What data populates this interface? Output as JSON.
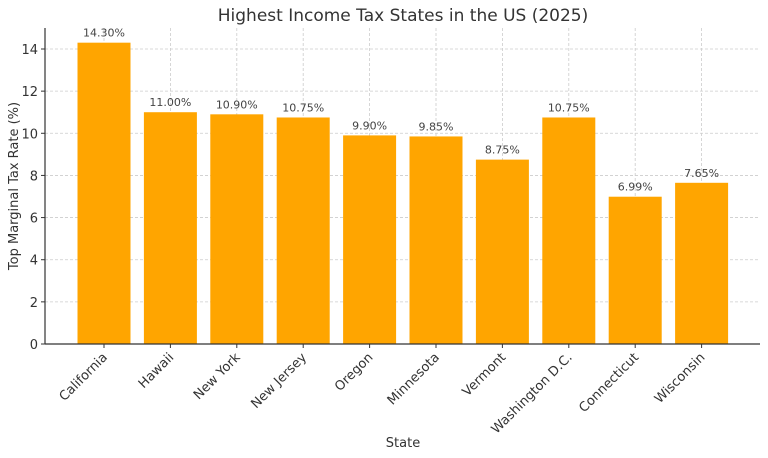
{
  "chart_data": {
    "type": "bar",
    "title": "Highest Income Tax States in the US (2025)",
    "xlabel": "State",
    "ylabel": "Top Marginal Tax Rate (%)",
    "categories": [
      "California",
      "Hawaii",
      "New York",
      "New Jersey",
      "Oregon",
      "Minnesota",
      "Vermont",
      "Washington D.C.",
      "Connecticut",
      "Wisconsin"
    ],
    "values": [
      14.3,
      11.0,
      10.9,
      10.75,
      9.9,
      9.85,
      8.75,
      10.75,
      6.99,
      7.65
    ],
    "value_labels": [
      "14.30%",
      "11.00%",
      "10.90%",
      "10.75%",
      "9.90%",
      "9.85%",
      "8.75%",
      "10.75%",
      "6.99%",
      "7.65%"
    ],
    "ylim": [
      0,
      15
    ],
    "yticks": [
      0,
      2,
      4,
      6,
      8,
      10,
      12,
      14
    ],
    "grid": true,
    "legend": null,
    "bar_color": "#FFA500",
    "xtick_rotation": -45
  }
}
